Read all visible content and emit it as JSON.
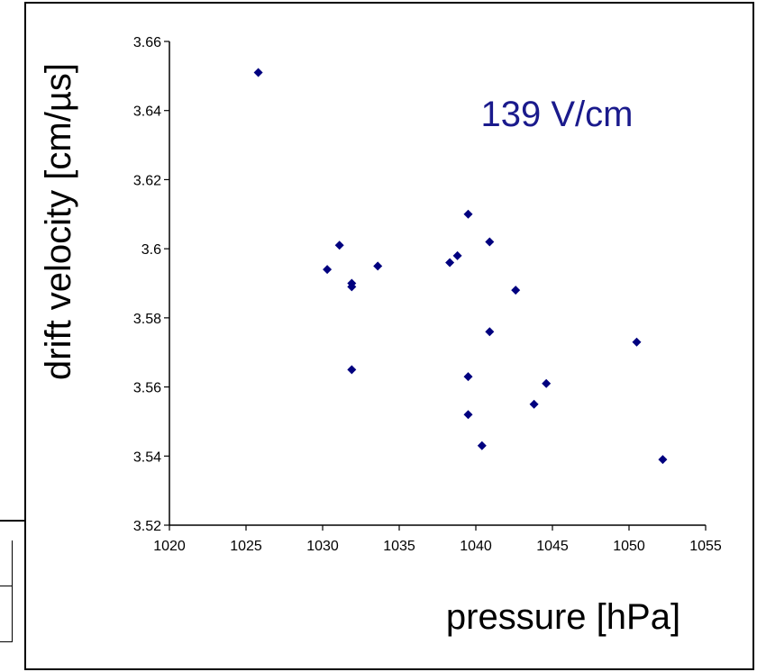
{
  "chart_data": {
    "type": "scatter",
    "title": "",
    "annotation": "139 V/cm",
    "xlabel": "pressure [hPa]",
    "ylabel": "drift velocity [cm/µs]",
    "xlim": [
      1020,
      1055
    ],
    "ylim": [
      3.52,
      3.66
    ],
    "xticks": [
      1020,
      1025,
      1030,
      1035,
      1040,
      1045,
      1050,
      1055
    ],
    "yticks": [
      3.52,
      3.54,
      3.56,
      3.58,
      3.6,
      3.62,
      3.64,
      3.66
    ],
    "ytick_labels": [
      "3.52",
      "3.54",
      "3.56",
      "3.58",
      "3.6",
      "3.62",
      "3.64",
      "3.66"
    ],
    "grid": false,
    "marker": "diamond",
    "marker_color": "#00007f",
    "points": [
      {
        "x": 1025.8,
        "y": 3.651
      },
      {
        "x": 1030.3,
        "y": 3.594
      },
      {
        "x": 1031.1,
        "y": 3.601
      },
      {
        "x": 1031.9,
        "y": 3.59
      },
      {
        "x": 1031.9,
        "y": 3.589
      },
      {
        "x": 1031.9,
        "y": 3.565
      },
      {
        "x": 1033.6,
        "y": 3.595
      },
      {
        "x": 1038.3,
        "y": 3.596
      },
      {
        "x": 1038.8,
        "y": 3.598
      },
      {
        "x": 1039.5,
        "y": 3.61
      },
      {
        "x": 1039.5,
        "y": 3.563
      },
      {
        "x": 1039.5,
        "y": 3.552
      },
      {
        "x": 1040.4,
        "y": 3.543
      },
      {
        "x": 1040.9,
        "y": 3.602
      },
      {
        "x": 1040.9,
        "y": 3.576
      },
      {
        "x": 1042.6,
        "y": 3.588
      },
      {
        "x": 1043.8,
        "y": 3.555
      },
      {
        "x": 1044.6,
        "y": 3.561
      },
      {
        "x": 1050.5,
        "y": 3.573
      },
      {
        "x": 1052.2,
        "y": 3.539
      }
    ]
  }
}
